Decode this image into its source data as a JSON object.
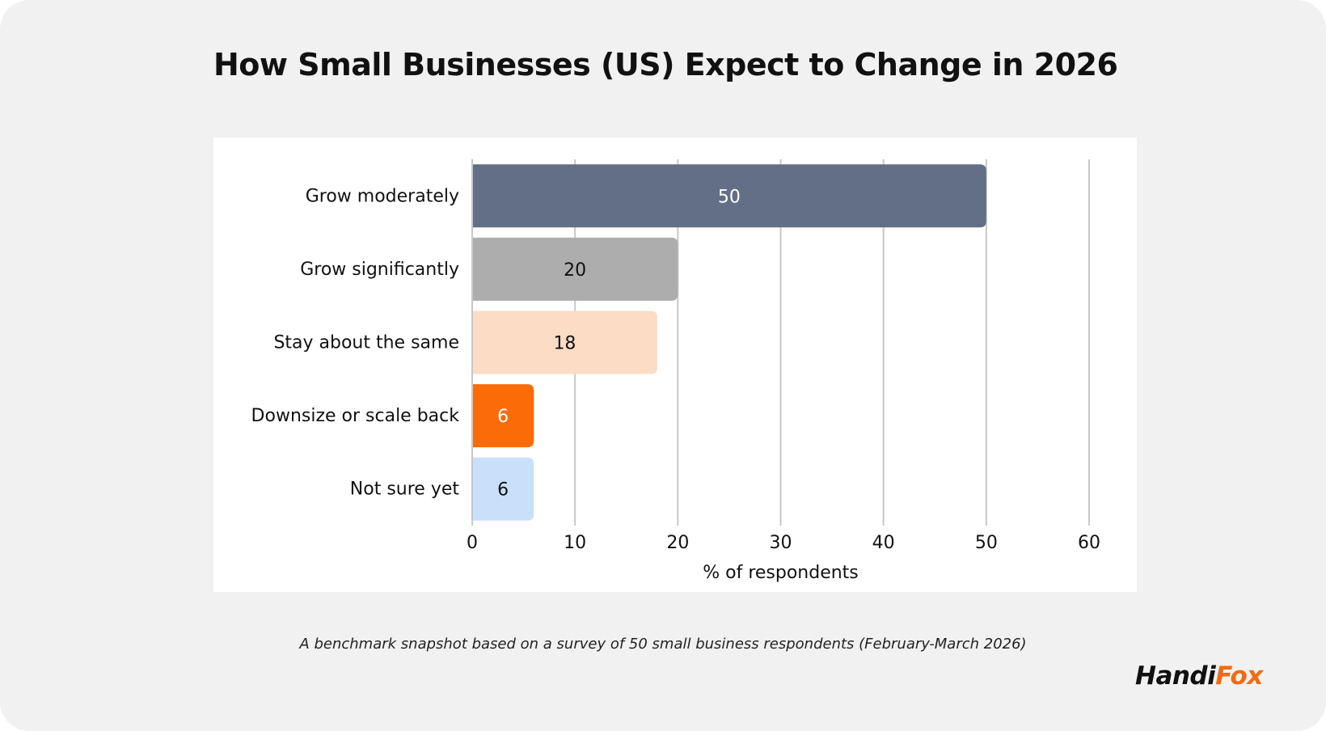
{
  "title": "How Small Businesses (US) Expect to Change in 2026",
  "caption": "A benchmark snapshot based on a survey of 50 small business respondents (February-March 2026)",
  "logo": {
    "part1": "Handi",
    "part2": "Fox",
    "color1": "#111111",
    "color2": "#f26b11"
  },
  "chart_data": {
    "type": "bar",
    "orientation": "horizontal",
    "title": "How Small Businesses (US) Expect to Change in 2026",
    "xlabel": "% of respondents",
    "ylabel": "",
    "xlim": [
      0,
      60
    ],
    "xticks": [
      0,
      10,
      20,
      30,
      40,
      50,
      60
    ],
    "grid": "vertical",
    "categories": [
      "Grow moderately",
      "Grow significantly",
      "Stay about the same",
      "Downsize or scale back",
      "Not sure yet"
    ],
    "values": [
      50,
      20,
      18,
      6,
      6
    ],
    "colors": [
      "#636e87",
      "#adadad",
      "#fddcc5",
      "#fb6c09",
      "#c9e0fb"
    ],
    "label_colors": [
      "#ffffff",
      "#111111",
      "#111111",
      "#ffffff",
      "#111111"
    ]
  }
}
